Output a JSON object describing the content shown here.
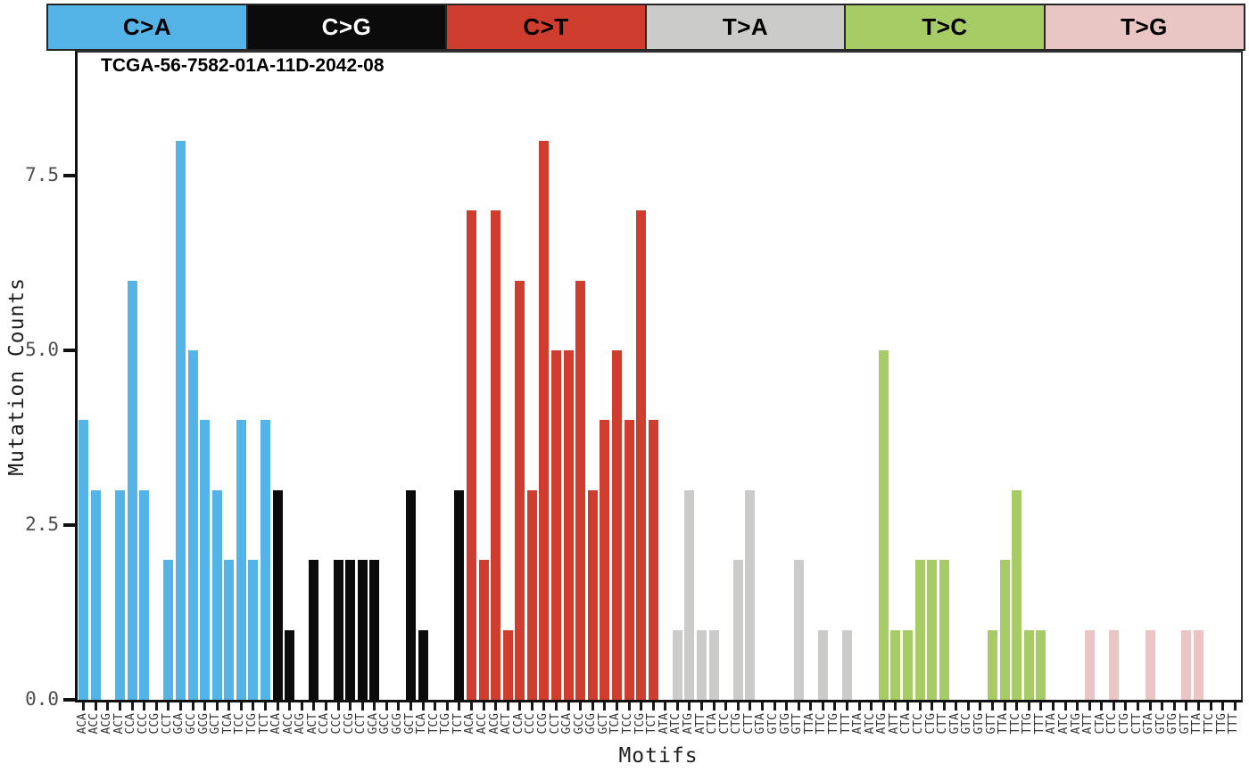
{
  "title": "TCGA-56-7582-01A-11D-2042-08",
  "ylabel": "Mutation Counts",
  "xlabel": "Motifs",
  "header": {
    "groups": [
      {
        "label": "C>A",
        "color": "#54B3E7",
        "text_color": "#000000"
      },
      {
        "label": "C>G",
        "color": "#0B0B0B",
        "text_color": "#FFFFFF"
      },
      {
        "label": "C>T",
        "color": "#CF3D2E",
        "text_color": "#000000"
      },
      {
        "label": "T>A",
        "color": "#CBCBC9",
        "text_color": "#000000"
      },
      {
        "label": "T>C",
        "color": "#A7CB65",
        "text_color": "#000000"
      },
      {
        "label": "T>G",
        "color": "#E9C6C3",
        "text_color": "#000000"
      }
    ]
  },
  "chart_data": {
    "type": "bar",
    "title": "TCGA-56-7582-01A-11D-2042-08",
    "xlabel": "Motifs",
    "ylabel": "Mutation Counts",
    "ylim": [
      0,
      9.3
    ],
    "yticks": [
      {
        "value": 0.0,
        "label": "0.0"
      },
      {
        "value": 2.5,
        "label": "2.5"
      },
      {
        "value": 5.0,
        "label": "5.0"
      },
      {
        "value": 7.5,
        "label": "7.5"
      }
    ],
    "grid": false,
    "legend_position": "top-strip",
    "groups": [
      {
        "mutation": "C>A",
        "color": "#54B3E7",
        "categories": [
          "ACA",
          "ACC",
          "ACG",
          "ACT",
          "CCA",
          "CCC",
          "CCG",
          "CCT",
          "GCA",
          "GCC",
          "GCG",
          "GCT",
          "TCA",
          "TCC",
          "TCG",
          "TCT"
        ],
        "values": [
          4,
          3,
          0,
          3,
          6,
          3,
          0,
          2,
          8,
          5,
          4,
          3,
          2,
          4,
          2,
          4
        ]
      },
      {
        "mutation": "C>G",
        "color": "#0B0B0B",
        "categories": [
          "ACA",
          "ACC",
          "ACG",
          "ACT",
          "CCA",
          "CCC",
          "CCG",
          "CCT",
          "GCA",
          "GCC",
          "GCG",
          "GCT",
          "TCA",
          "TCC",
          "TCG",
          "TCT"
        ],
        "values": [
          3,
          1,
          0,
          2,
          0,
          2,
          2,
          2,
          2,
          0,
          0,
          3,
          1,
          0,
          0,
          3
        ]
      },
      {
        "mutation": "C>T",
        "color": "#CF3D2E",
        "categories": [
          "ACA",
          "ACC",
          "ACG",
          "ACT",
          "CCA",
          "CCC",
          "CCG",
          "CCT",
          "GCA",
          "GCC",
          "GCG",
          "GCT",
          "TCA",
          "TCC",
          "TCG",
          "TCT"
        ],
        "values": [
          7,
          2,
          7,
          1,
          6,
          3,
          8,
          5,
          5,
          6,
          3,
          4,
          5,
          4,
          7,
          4
        ]
      },
      {
        "mutation": "T>A",
        "color": "#CBCBC9",
        "categories": [
          "ATA",
          "ATC",
          "ATG",
          "ATT",
          "CTA",
          "CTC",
          "CTG",
          "CTT",
          "GTA",
          "GTC",
          "GTG",
          "GTT",
          "TTA",
          "TTC",
          "TTG",
          "TTT"
        ],
        "values": [
          0,
          1,
          3,
          1,
          1,
          0,
          2,
          3,
          0,
          0,
          0,
          2,
          0,
          1,
          0,
          1
        ]
      },
      {
        "mutation": "T>C",
        "color": "#A7CB65",
        "categories": [
          "ATA",
          "ATC",
          "ATG",
          "ATT",
          "CTA",
          "CTC",
          "CTG",
          "CTT",
          "GTA",
          "GTC",
          "GTG",
          "GTT",
          "TTA",
          "TTC",
          "TTG",
          "TTT"
        ],
        "values": [
          0,
          0,
          5,
          1,
          1,
          2,
          2,
          2,
          0,
          0,
          0,
          1,
          2,
          3,
          1,
          1
        ]
      },
      {
        "mutation": "T>G",
        "color": "#E9C6C3",
        "categories": [
          "ATA",
          "ATC",
          "ATG",
          "ATT",
          "CTA",
          "CTC",
          "CTG",
          "CTT",
          "GTA",
          "GTC",
          "GTG",
          "GTT",
          "TTA",
          "TTC",
          "TTG",
          "TTT"
        ],
        "values": [
          0,
          0,
          0,
          1,
          0,
          1,
          0,
          0,
          1,
          0,
          0,
          1,
          1,
          0,
          0,
          0
        ]
      }
    ]
  }
}
